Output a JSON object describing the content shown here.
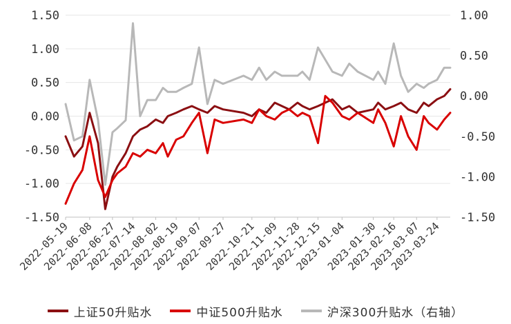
{
  "chart_data": {
    "type": "line",
    "title": "",
    "left_axis": {
      "ylim": [
        -1.5,
        1.5
      ],
      "ticks": [
        -1.5,
        -1.0,
        -0.5,
        0.0,
        0.5,
        1.0,
        1.5
      ],
      "tick_labels": [
        "-1.50",
        "-1.00",
        "-0.50",
        "0.00",
        "0.50",
        "1.00",
        "1.50"
      ]
    },
    "right_axis": {
      "ylim": [
        -1.5,
        1.0
      ],
      "ticks": [
        -1.5,
        -1.0,
        -0.5,
        0.0,
        0.5,
        1.0
      ],
      "tick_labels": [
        "-1.50",
        "-1.00",
        "-0.50",
        "0.00",
        "0.50",
        "1.00"
      ]
    },
    "x_tick_labels": [
      "2022-05-19",
      "2022-06-08",
      "2022-06-27",
      "2022-07-14",
      "2022-08-02",
      "2022-08-19",
      "2022-09-07",
      "2022-09-27",
      "2022-10-21",
      "2022-11-09",
      "2022-11-28",
      "2022-12-15",
      "2023-01-04",
      "2023-01-30",
      "2023-02-16",
      "2023-03-07",
      "2023-03-24"
    ],
    "x": [
      "2022-05-19",
      "2022-05-26",
      "2022-06-02",
      "2022-06-08",
      "2022-06-15",
      "2022-06-21",
      "2022-06-27",
      "2022-07-01",
      "2022-07-08",
      "2022-07-14",
      "2022-07-20",
      "2022-07-26",
      "2022-08-02",
      "2022-08-08",
      "2022-08-12",
      "2022-08-19",
      "2022-08-25",
      "2022-09-01",
      "2022-09-07",
      "2022-09-14",
      "2022-09-20",
      "2022-09-27",
      "2022-10-14",
      "2022-10-21",
      "2022-10-27",
      "2022-11-02",
      "2022-11-09",
      "2022-11-15",
      "2022-11-21",
      "2022-11-28",
      "2022-12-02",
      "2022-12-08",
      "2022-12-15",
      "2022-12-21",
      "2022-12-27",
      "2023-01-04",
      "2023-01-10",
      "2023-01-17",
      "2023-01-30",
      "2023-02-03",
      "2023-02-09",
      "2023-02-16",
      "2023-02-22",
      "2023-02-28",
      "2023-03-07",
      "2023-03-13",
      "2023-03-17",
      "2023-03-24",
      "2023-03-30",
      "2023-04-04"
    ],
    "series": [
      {
        "name": "上证50升贴水",
        "axis": "left",
        "color": "#8b0f12",
        "values": [
          -0.3,
          -0.6,
          -0.45,
          0.05,
          -0.4,
          -1.38,
          -0.9,
          -0.75,
          -0.55,
          -0.3,
          -0.2,
          -0.15,
          -0.05,
          -0.1,
          0.0,
          0.05,
          0.1,
          0.15,
          0.1,
          0.05,
          0.15,
          0.1,
          0.05,
          0.0,
          0.1,
          0.05,
          0.2,
          0.15,
          0.1,
          0.2,
          0.15,
          0.1,
          0.15,
          0.2,
          0.25,
          0.1,
          0.15,
          0.05,
          0.1,
          0.2,
          0.1,
          0.15,
          0.2,
          0.1,
          0.05,
          0.2,
          0.15,
          0.25,
          0.3,
          0.4
        ]
      },
      {
        "name": "中证500升贴水",
        "axis": "left",
        "color": "#d90000",
        "values": [
          -1.3,
          -1.0,
          -0.8,
          -0.3,
          -0.95,
          -1.2,
          -0.95,
          -0.85,
          -0.75,
          -0.55,
          -0.6,
          -0.5,
          -0.55,
          -0.4,
          -0.6,
          -0.35,
          -0.3,
          -0.1,
          0.05,
          -0.55,
          -0.05,
          -0.1,
          -0.05,
          -0.1,
          0.1,
          0.0,
          -0.05,
          0.05,
          0.1,
          0.0,
          0.05,
          0.0,
          -0.4,
          0.3,
          0.2,
          0.0,
          -0.05,
          0.05,
          -0.1,
          0.1,
          -0.1,
          -0.45,
          0.0,
          -0.3,
          -0.5,
          0.0,
          -0.1,
          -0.2,
          -0.05,
          0.05
        ]
      },
      {
        "name": "沪深300升贴水（右轴）",
        "axis": "right",
        "color": "#b8b8b8",
        "values": [
          -0.1,
          -0.55,
          -0.5,
          0.2,
          -0.3,
          -1.1,
          -0.45,
          -0.4,
          -0.3,
          0.9,
          -0.25,
          -0.05,
          -0.05,
          0.1,
          0.05,
          0.05,
          0.1,
          0.15,
          0.6,
          -0.1,
          0.2,
          0.15,
          0.25,
          0.2,
          0.35,
          0.2,
          0.3,
          0.25,
          0.25,
          0.25,
          0.3,
          0.2,
          0.6,
          0.45,
          0.3,
          0.25,
          0.4,
          0.3,
          0.2,
          0.3,
          0.15,
          0.65,
          0.25,
          0.05,
          0.15,
          0.1,
          0.15,
          0.2,
          0.35,
          0.35
        ]
      }
    ],
    "legend": {
      "placement": "bottom"
    },
    "grid": {
      "horizontal": true,
      "vertical": false
    }
  }
}
